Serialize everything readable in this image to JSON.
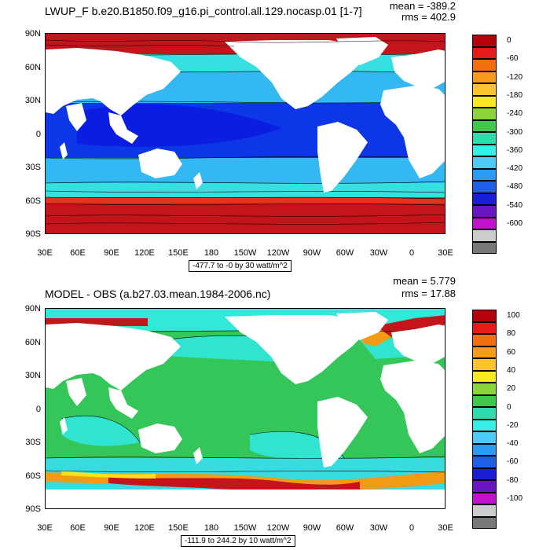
{
  "top": {
    "title": "LWUP_F b.e20.B1850.f09_g16.pi_control.all.129.nocasp.01 [1-7]",
    "mean": "mean = -389.2",
    "rms": "rms = 402.9",
    "contour_note": "-477.7 to -0 by 30 watt/m^2",
    "colorbar_labels": [
      "0",
      "-60",
      "-120",
      "-180",
      "-240",
      "-300",
      "-360",
      "-420",
      "-480",
      "-540",
      "-600"
    ],
    "colorbar_colors": [
      "#b4000a",
      "#e41a1c",
      "#f46d0f",
      "#f99a1c",
      "#fdc431",
      "#f8e826",
      "#8ad53a",
      "#3ec94d",
      "#2fdcae",
      "#37efe4",
      "#4ccbf6",
      "#2a9cf2",
      "#1f5fe6",
      "#1b1ed2",
      "#6a15c2",
      "#c010d0",
      "#cccccc",
      "#777777"
    ],
    "fields": {
      "north": "#c3151b",
      "south": "#c3151b",
      "polar": "#e2341a",
      "sub_polar": "#f5b52a",
      "mid": "#37e0e0",
      "tropic": "#33b8f2",
      "warm": "#0c36e6",
      "warm_core": "#0a1de1"
    }
  },
  "bottom": {
    "title": "MODEL - OBS (a.b27.03.mean.1984-2006.nc)",
    "mean": "mean = 5.779",
    "rms": "rms = 17.88",
    "contour_note": "-111.9 to 244.2 by 10 watt/m^2",
    "colorbar_labels": [
      "100",
      "80",
      "60",
      "40",
      "20",
      "0",
      "-20",
      "-40",
      "-60",
      "-80",
      "-100"
    ],
    "colorbar_colors": [
      "#b4000a",
      "#e41a1c",
      "#f46d0f",
      "#f99a1c",
      "#fdc431",
      "#f8e826",
      "#8ad53a",
      "#3ec94d",
      "#2fdcae",
      "#37efe4",
      "#4ccbf6",
      "#2a9cf2",
      "#1f5fe6",
      "#1b1ed2",
      "#6a15c2",
      "#c010d0",
      "#cccccc",
      "#777777"
    ],
    "fields": {
      "ocean": "#34c659",
      "high": "#30e4cf",
      "arctic": "#33e8d8",
      "southern": "#37dbe0",
      "stripe": "#c3151b",
      "stripe_edge": "#f49b16",
      "shelf": "#f4e21f"
    }
  },
  "axes": {
    "y_ticks": [
      "90N",
      "60N",
      "30N",
      "0",
      "30S",
      "60S",
      "90S"
    ],
    "x_ticks": [
      "30E",
      "60E",
      "90E",
      "120E",
      "150E",
      "180",
      "150W",
      "120W",
      "90W",
      "60W",
      "30W",
      "0",
      "30E"
    ]
  }
}
